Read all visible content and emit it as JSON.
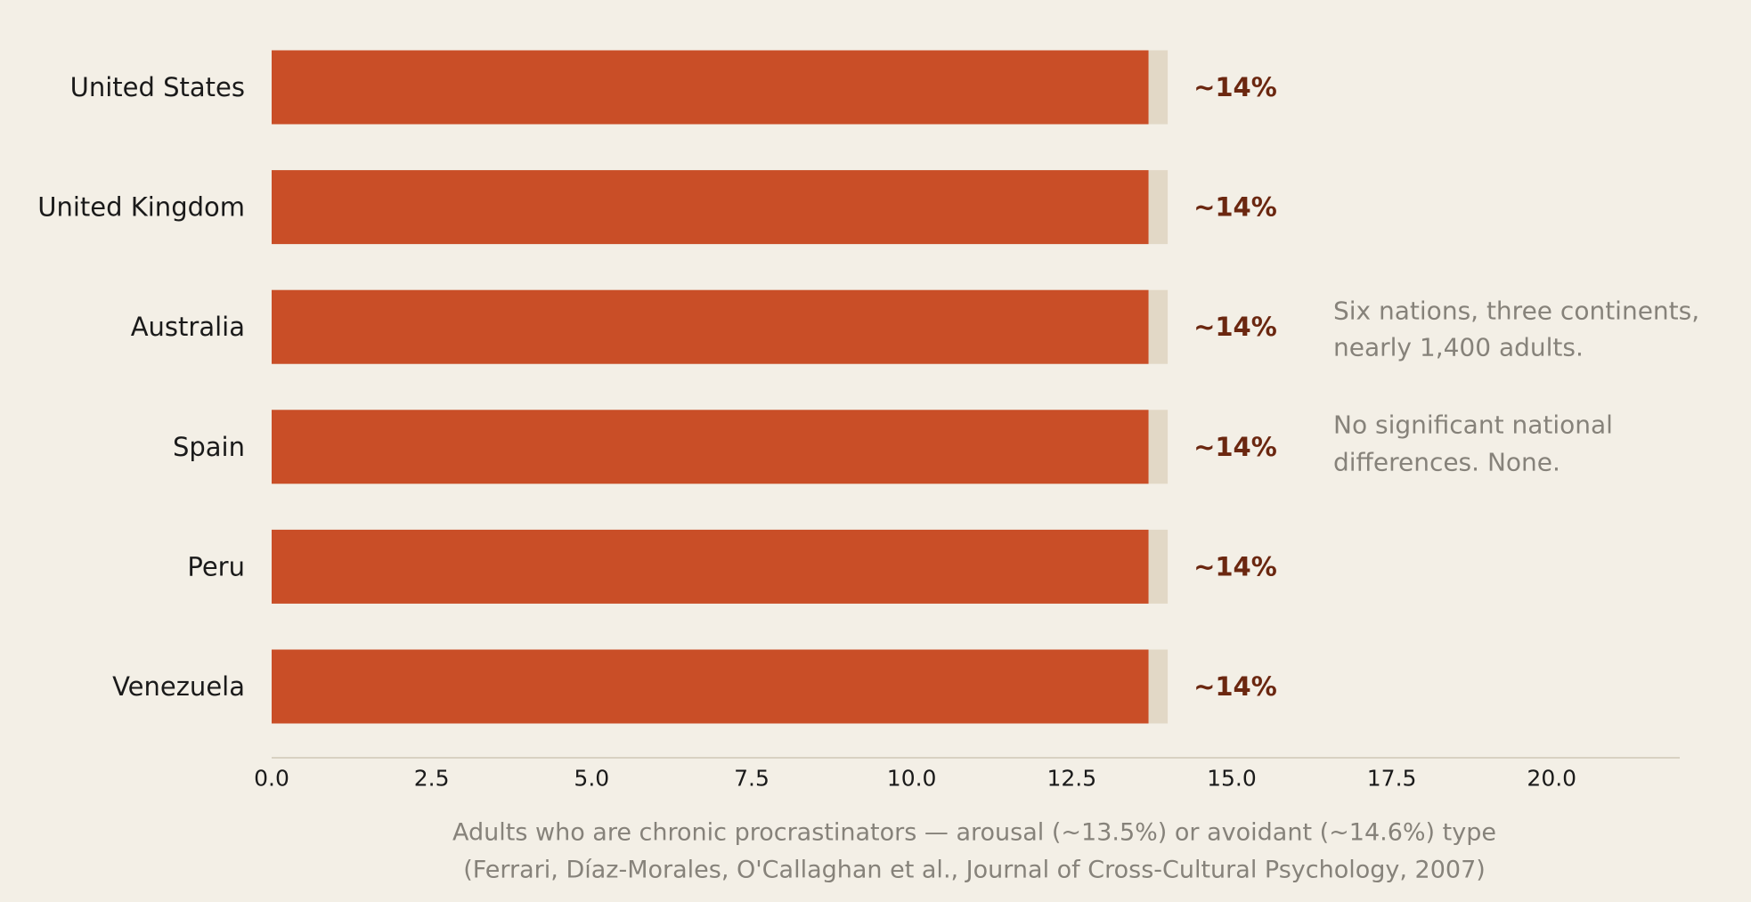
{
  "chart_data": {
    "type": "bar",
    "orientation": "horizontal",
    "categories": [
      "United States",
      "United Kingdom",
      "Australia",
      "Spain",
      "Peru",
      "Venezuela"
    ],
    "values": [
      13.7,
      13.7,
      13.7,
      13.7,
      13.7,
      13.7
    ],
    "range_values": [
      14.0,
      14.0,
      14.0,
      14.0,
      14.0,
      14.0
    ],
    "data_labels": [
      "~14%",
      "~14%",
      "~14%",
      "~14%",
      "~14%",
      "~14%"
    ],
    "xlim": [
      0,
      22
    ],
    "xticks": [
      "0.0",
      "2.5",
      "5.0",
      "7.5",
      "10.0",
      "12.5",
      "15.0",
      "17.5",
      "20.0"
    ],
    "annotations": [
      "Six nations, three continents,",
      "nearly 1,400 adults.",
      "No significant national",
      "differences. None."
    ],
    "caption": [
      "Adults who are chronic procrastinators — arousal (~13.5%) or avoidant (~14.6%) type",
      "(Ferrari, Díaz-Morales, O'Callaghan et al., Journal of Cross-Cultural Psychology, 2007)"
    ],
    "grid": false,
    "legend": "none",
    "colors": {
      "bar": "#c94e27",
      "range": "#e2d8c6",
      "value_text": "#6b2710",
      "axis": "#d8d1c2",
      "muted_text": "#86827a",
      "background": "#f3efe6"
    }
  }
}
